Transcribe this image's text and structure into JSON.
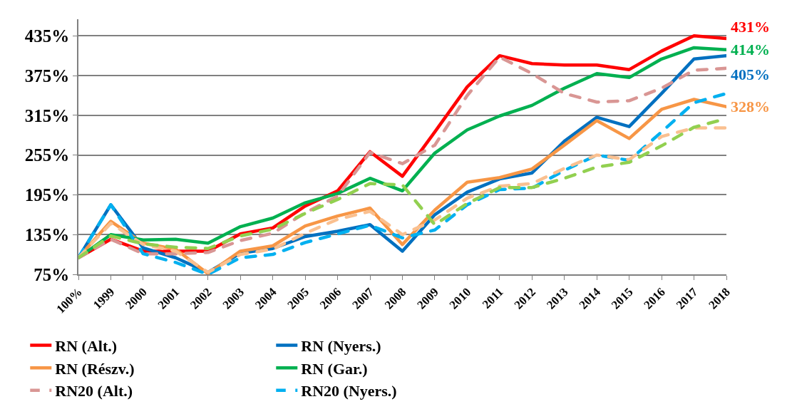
{
  "chart_data": {
    "type": "line",
    "categories": [
      "100%",
      "1999",
      "2000",
      "2001",
      "2002",
      "2003",
      "2004",
      "2005",
      "2006",
      "2007",
      "2008",
      "2009",
      "2010",
      "2011",
      "2012",
      "2013",
      "2014",
      "2015",
      "2016",
      "2017",
      "2018"
    ],
    "series": [
      {
        "name": "RN (Alt.)",
        "color": "#ff0000",
        "line_style": "solid",
        "values": [
          100,
          128,
          110,
          110,
          110,
          136,
          145,
          178,
          201,
          260,
          223,
          290,
          358,
          405,
          393,
          391,
          391,
          384,
          412,
          435,
          431
        ]
      },
      {
        "name": "RN (Nyers.)",
        "color": "#0070c0",
        "line_style": "solid",
        "values": [
          100,
          180,
          115,
          100,
          78,
          107,
          114,
          132,
          140,
          150,
          110,
          165,
          199,
          219,
          228,
          276,
          312,
          298,
          348,
          400,
          405
        ]
      },
      {
        "name": "RN (Részv.)",
        "color": "#f79646",
        "line_style": "solid",
        "values": [
          100,
          155,
          122,
          113,
          76,
          110,
          118,
          148,
          163,
          175,
          120,
          172,
          214,
          221,
          234,
          270,
          307,
          280,
          324,
          339,
          328
        ]
      },
      {
        "name": "RN (Gar.)",
        "color": "#00b050",
        "line_style": "solid",
        "values": [
          100,
          135,
          127,
          128,
          122,
          147,
          160,
          183,
          197,
          220,
          201,
          258,
          293,
          314,
          330,
          356,
          378,
          372,
          400,
          417,
          414
        ]
      },
      {
        "name": "RN20 (Alt.)",
        "color": "#d99694",
        "line_style": "dashed",
        "values": [
          100,
          128,
          106,
          106,
          108,
          126,
          137,
          168,
          193,
          259,
          242,
          270,
          345,
          403,
          378,
          348,
          335,
          337,
          356,
          383,
          386
        ]
      },
      {
        "name": "RN20 (Nyers.)",
        "color": "#00b0f0",
        "line_style": "dashed",
        "values": [
          100,
          180,
          106,
          93,
          75,
          100,
          105,
          123,
          136,
          149,
          130,
          142,
          180,
          203,
          205,
          232,
          255,
          247,
          290,
          334,
          348
        ]
      },
      {
        "color": "#fac090",
        "line_style": "dashed",
        "values": [
          100,
          152,
          120,
          110,
          78,
          105,
          113,
          137,
          158,
          170,
          135,
          157,
          190,
          208,
          212,
          235,
          255,
          248,
          283,
          296,
          296
        ]
      },
      {
        "color": "#92d050",
        "line_style": "dashed",
        "values": [
          100,
          133,
          121,
          116,
          114,
          133,
          143,
          167,
          188,
          212,
          210,
          150,
          182,
          206,
          206,
          220,
          237,
          244,
          269,
          297,
          310
        ]
      }
    ],
    "ylim": [
      75,
      460
    ],
    "yticks": [
      {
        "value": 75,
        "label": "75%"
      },
      {
        "value": 135,
        "label": "135%"
      },
      {
        "value": 195,
        "label": "195%"
      },
      {
        "value": 255,
        "label": "255%"
      },
      {
        "value": 315,
        "label": "315%"
      },
      {
        "value": 375,
        "label": "375%"
      },
      {
        "value": 435,
        "label": "435%"
      }
    ],
    "grid": "y",
    "legend": "bottom",
    "marker": "none",
    "annotations": [
      {
        "text": "431%",
        "x": "2018",
        "y": 431
      },
      {
        "text": "414%",
        "x": "2018",
        "y": 414
      },
      {
        "text": "405%",
        "x": "2018",
        "y": 405
      },
      {
        "text": "328%",
        "x": "2018",
        "y": 328
      }
    ]
  }
}
